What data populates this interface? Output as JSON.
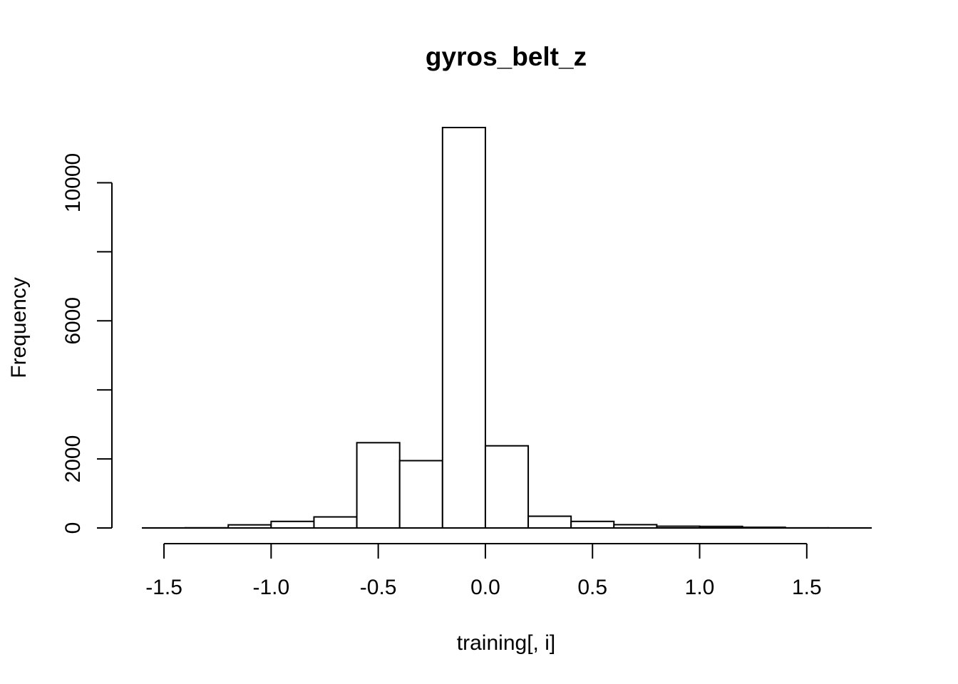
{
  "chart_data": {
    "type": "bar",
    "title": "gyros_belt_z",
    "xlabel": "training[, i]",
    "ylabel": "Frequency",
    "bin_width": 0.2,
    "bin_starts": [
      -1.6,
      -1.4,
      -1.2,
      -1.0,
      -0.8,
      -0.6,
      -0.4,
      -0.2,
      0.0,
      0.2,
      0.4,
      0.6,
      0.8,
      1.0,
      1.2,
      1.4,
      1.6
    ],
    "values": [
      2,
      5,
      90,
      190,
      320,
      2470,
      1950,
      11600,
      2380,
      340,
      190,
      95,
      50,
      45,
      20,
      3,
      2
    ],
    "xlim": [
      -1.6,
      1.8
    ],
    "ylim": [
      0,
      11600
    ],
    "x_ticks": [
      -1.5,
      -1.0,
      -0.5,
      0.0,
      0.5,
      1.0,
      1.5
    ],
    "x_tick_labels": [
      "-1.5",
      "-1.0",
      "-0.5",
      "0.0",
      "0.5",
      "1.0",
      "1.5"
    ],
    "y_ticks": [
      0,
      2000,
      4000,
      6000,
      8000,
      10000
    ],
    "y_tick_labels": [
      "0",
      "2000",
      "",
      "6000",
      "",
      "10000"
    ],
    "grid": false,
    "legend": "none"
  }
}
